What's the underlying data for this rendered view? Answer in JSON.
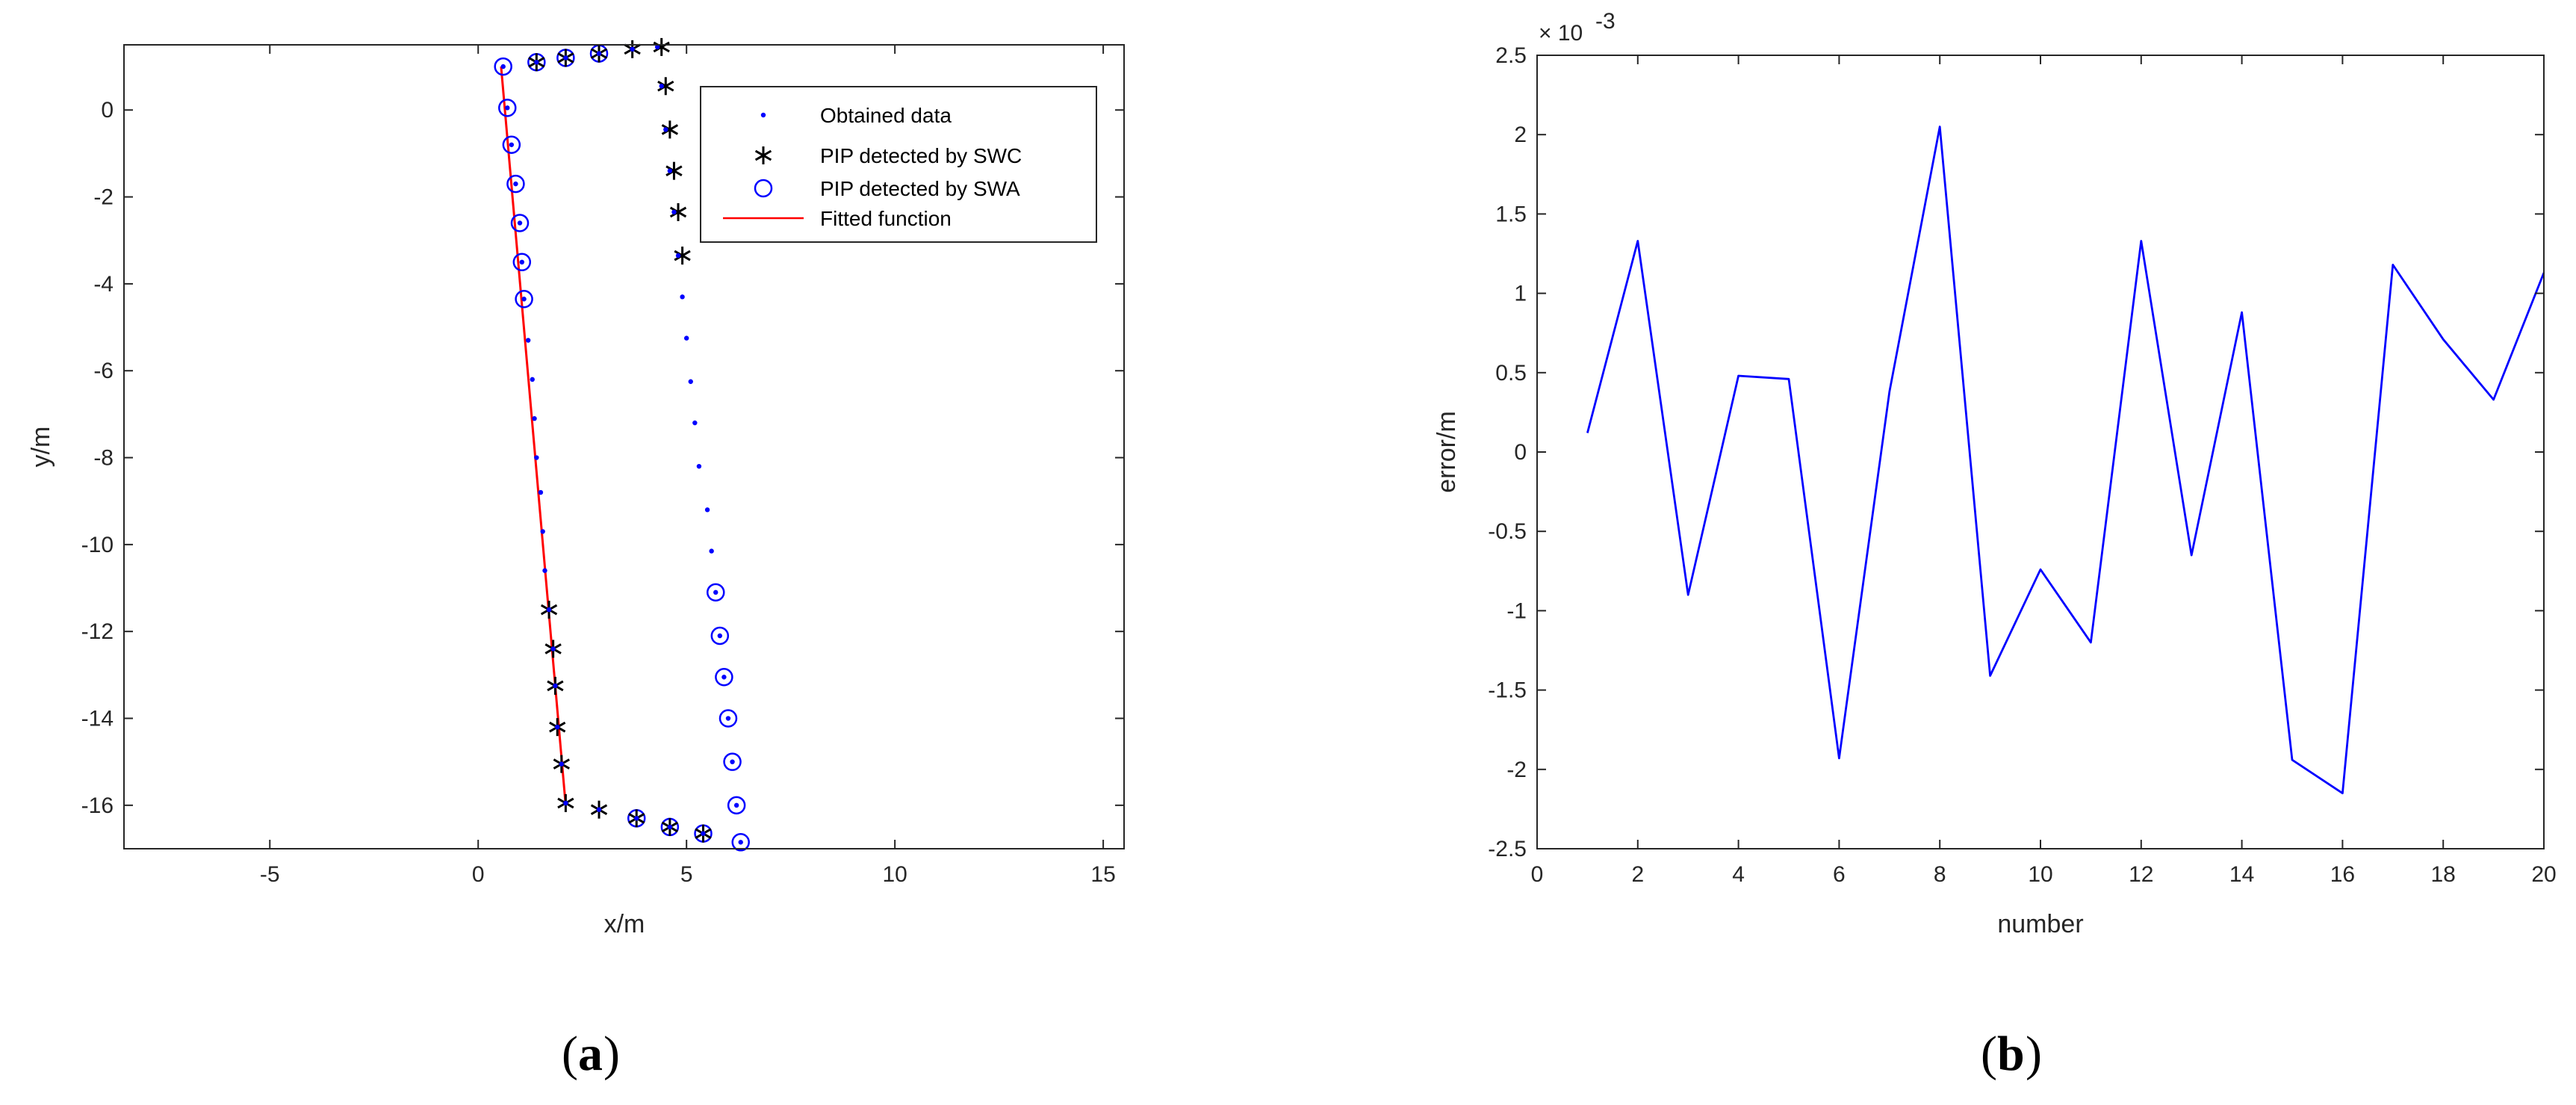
{
  "chart_data": [
    {
      "type": "scatter",
      "panel_label": "a",
      "xlabel": "x/m",
      "ylabel": "y/m",
      "xlim": [
        -8.5,
        15.5
      ],
      "ylim": [
        -17,
        1.5
      ],
      "xticks": [
        -5,
        0,
        5,
        10,
        15
      ],
      "yticks": [
        0,
        -2,
        -4,
        -6,
        -8,
        -10,
        -12,
        -14,
        -16
      ],
      "grid": false,
      "legend_position": "top-right",
      "series": [
        {
          "name": "Obtained data",
          "marker": "dot",
          "color": "#0000ff",
          "x": [
            0.6,
            0.7,
            0.8,
            0.9,
            1.0,
            1.05,
            1.1,
            1.2,
            1.3,
            1.35,
            1.4,
            1.5,
            1.55,
            1.6,
            1.7,
            1.8,
            1.85,
            1.9,
            2.0,
            2.1,
            1.4,
            2.1,
            2.9,
            3.7,
            4.3,
            4.4,
            4.5,
            4.6,
            4.7,
            4.8,
            4.9,
            5.0,
            5.1,
            5.2,
            5.3,
            5.5,
            5.6,
            5.7,
            5.8,
            5.9,
            6.0,
            6.1,
            6.2,
            2.9,
            3.8,
            4.6,
            5.4,
            6.3
          ],
          "y": [
            1.0,
            0.05,
            -0.8,
            -1.7,
            -2.6,
            -3.5,
            -4.35,
            -5.3,
            -6.2,
            -7.1,
            -8.0,
            -8.8,
            -9.7,
            -10.6,
            -11.5,
            -12.4,
            -13.25,
            -14.2,
            -15.05,
            -15.95,
            1.1,
            1.2,
            1.3,
            1.4,
            1.45,
            0.55,
            -0.45,
            -1.4,
            -2.35,
            -3.35,
            -4.3,
            -5.25,
            -6.25,
            -7.2,
            -8.2,
            -9.2,
            -10.15,
            -11.1,
            -12.1,
            -13.05,
            -14.0,
            -15.0,
            -16.0,
            -16.1,
            -16.3,
            -16.5,
            -16.65,
            -16.85
          ]
        },
        {
          "name": "PIP detected by SWC",
          "marker": "asterisk",
          "color": "#000000",
          "x": [
            1.4,
            2.1,
            2.9,
            3.7,
            4.4,
            4.5,
            4.6,
            4.7,
            4.8,
            4.9,
            1.7,
            1.8,
            1.85,
            1.9,
            2.0,
            2.1,
            2.9,
            3.8,
            4.6,
            5.4
          ],
          "y": [
            1.1,
            1.2,
            1.3,
            1.4,
            1.45,
            0.55,
            -0.45,
            -1.4,
            -2.35,
            -3.35,
            -11.5,
            -12.4,
            -13.25,
            -14.2,
            -15.05,
            -15.95,
            -16.1,
            -16.3,
            -16.5,
            -16.65
          ]
        },
        {
          "name": "PIP detected by SWA",
          "marker": "circle",
          "color": "#0000ff",
          "x": [
            0.6,
            0.7,
            0.8,
            0.9,
            1.0,
            1.05,
            1.1,
            1.4,
            2.1,
            2.9,
            3.8,
            4.6,
            5.4,
            5.7,
            5.8,
            5.9,
            6.0,
            6.1,
            6.2,
            6.3
          ],
          "y": [
            1.0,
            0.05,
            -0.8,
            -1.7,
            -2.6,
            -3.5,
            -4.35,
            1.1,
            1.2,
            1.3,
            -16.3,
            -16.5,
            -16.65,
            -11.1,
            -12.1,
            -13.05,
            -14.0,
            -15.0,
            -16.0,
            -16.85
          ]
        },
        {
          "name": "Fitted function",
          "marker": "line",
          "color": "#ff0000",
          "x": [
            0.55,
            2.1
          ],
          "y": [
            1.0,
            -16.0
          ]
        }
      ]
    },
    {
      "type": "line",
      "panel_label": "b",
      "xlabel": "number",
      "ylabel": "error/m",
      "exponent_label": "× 10",
      "exponent_power": "-3",
      "xlim": [
        0,
        20
      ],
      "ylim": [
        -2.5,
        2.5
      ],
      "xticks": [
        0,
        2,
        4,
        6,
        8,
        10,
        12,
        14,
        16,
        18,
        20
      ],
      "yticks": [
        2.5,
        2,
        1.5,
        1,
        0.5,
        0,
        -0.5,
        -1,
        -1.5,
        -2,
        -2.5
      ],
      "grid": false,
      "series": [
        {
          "color": "#0000ff",
          "x": [
            1,
            2,
            3,
            4,
            5,
            6,
            7,
            8,
            9,
            10,
            11,
            12,
            13,
            14,
            15,
            16,
            17,
            18,
            19,
            20
          ],
          "y": [
            0.12,
            1.33,
            -0.9,
            0.48,
            0.46,
            -1.93,
            0.38,
            2.05,
            -1.41,
            -0.74,
            -1.2,
            1.33,
            -0.65,
            0.88,
            -1.94,
            -2.15,
            1.18,
            0.71,
            0.33,
            1.13
          ]
        }
      ]
    }
  ]
}
